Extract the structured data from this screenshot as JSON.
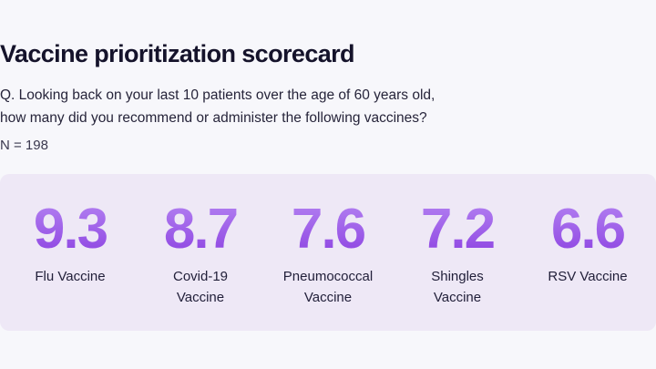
{
  "title": "Vaccine prioritization scorecard",
  "question": {
    "line1": "Q. Looking back on your last 10 patients over the age of 60 years old,",
    "line2": "how many did you recommend or administer the following vaccines?"
  },
  "sample": "N = 198",
  "colors": {
    "accent_light": "#b584f2",
    "accent_dark": "#8a3fe0",
    "card_background": "#eee8f6",
    "page_background": "#f7f7fb"
  },
  "chart_data": {
    "type": "table",
    "title": "Vaccine prioritization scorecard",
    "categories": [
      "Flu Vaccine",
      "Covid-19 Vaccine",
      "Pneumococcal Vaccine",
      "Shingles Vaccine",
      "RSV Vaccine"
    ],
    "values": [
      9.3,
      8.7,
      7.6,
      7.2,
      6.6
    ],
    "display_values": [
      "9.3",
      "8.7",
      "7.6",
      "7.2",
      "6.6"
    ],
    "label_lines": [
      [
        "Flu Vaccine"
      ],
      [
        "Covid-19",
        "Vaccine"
      ],
      [
        "Pneumococcal",
        "Vaccine"
      ],
      [
        "Shingles",
        "Vaccine"
      ],
      [
        "RSV Vaccine"
      ]
    ]
  }
}
